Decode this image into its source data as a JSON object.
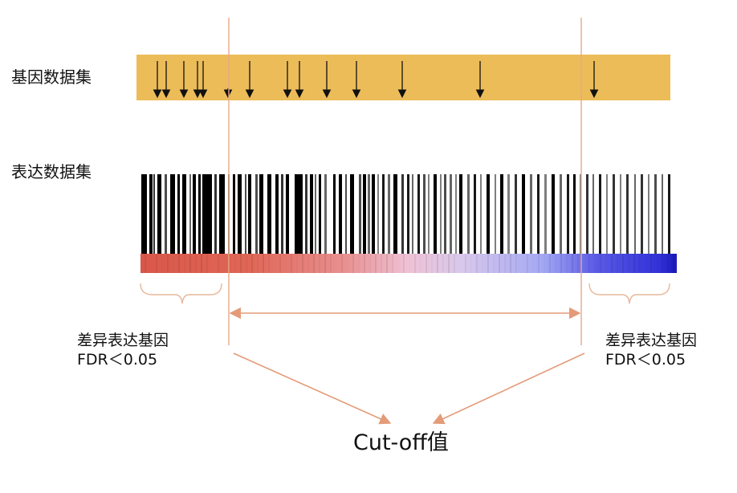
{
  "labels": {
    "gene_set": "基因数据集",
    "expression_set": "表达数据集"
  },
  "left_note": {
    "line1": "差异表达基因",
    "line2": "FDR＜0.05"
  },
  "right_note": {
    "line1": "差异表达基因",
    "line2": "FDR＜0.05"
  },
  "cutoff_label": "Cut-off值",
  "colors": {
    "gene_band": "#ECBC58",
    "cutoff_line": "#E8A888",
    "arrow": "#E39B78",
    "bracket": "#E7B79A",
    "gradient_red": "#D9574A",
    "gradient_pink": "#ECC4DC",
    "gradient_blue": "#2A2ADC"
  },
  "icons": {
    "gene_marker": "down-arrow-icon"
  }
}
